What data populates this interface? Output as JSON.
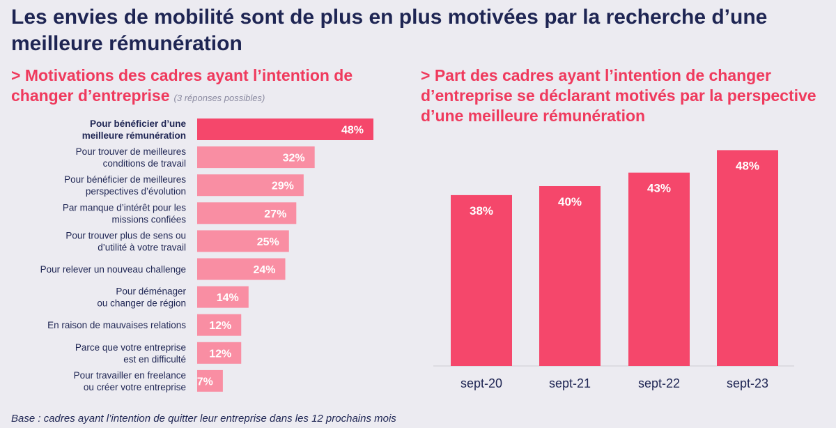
{
  "title": "Les envies de mobilité sont de plus en plus motivées par la recherche d’une meilleure rémunération",
  "left_subtitle": "> Motivations des cadres ayant l’intention de changer d’entreprise",
  "left_note": "(3 réponses possibles)",
  "right_subtitle": "> Part des cadres ayant l’intention de changer d’entreprise se déclarant motivés par la perspective d’une meilleure rémunération",
  "footer": "Base : cadres ayant l’intention de quitter leur entreprise dans les 12 prochains mois",
  "colors": {
    "highlight": "#f5476b",
    "light": "#f98ea3",
    "accent": "#ef3a5d",
    "title": "#1e2553"
  },
  "chart_data": [
    {
      "type": "bar",
      "orientation": "horizontal",
      "unit": "%",
      "categories": [
        [
          "Pour bénéficier d’une",
          "meilleure rémunération"
        ],
        [
          "Pour trouver de meilleures",
          "conditions de travail"
        ],
        [
          "Pour bénéficier de meilleures",
          "perspectives d’évolution"
        ],
        [
          "Par manque d’intérêt pour les",
          "missions confiées"
        ],
        [
          "Pour trouver plus de sens ou",
          "d’utilité à votre travail"
        ],
        [
          "Pour relever un nouveau challenge"
        ],
        [
          "Pour déménager",
          "ou changer de région"
        ],
        [
          "En raison de mauvaises relations"
        ],
        [
          "Parce que votre entreprise",
          "est en difficulté"
        ],
        [
          "Pour travailler en freelance",
          "ou créer votre entreprise"
        ]
      ],
      "values": [
        48,
        32,
        29,
        27,
        25,
        24,
        14,
        12,
        12,
        7
      ],
      "labels": [
        "48%",
        "32%",
        "29%",
        "27%",
        "25%",
        "24%",
        "14%",
        "12%",
        "12%",
        "7%"
      ],
      "highlight_index": 0,
      "xlim": [
        0,
        48
      ]
    },
    {
      "type": "bar",
      "orientation": "vertical",
      "unit": "%",
      "categories": [
        "sept-20",
        "sept-21",
        "sept-22",
        "sept-23"
      ],
      "values": [
        38,
        40,
        43,
        48
      ],
      "labels": [
        "38%",
        "40%",
        "43%",
        "48%"
      ],
      "ylim": [
        0,
        56
      ]
    }
  ]
}
